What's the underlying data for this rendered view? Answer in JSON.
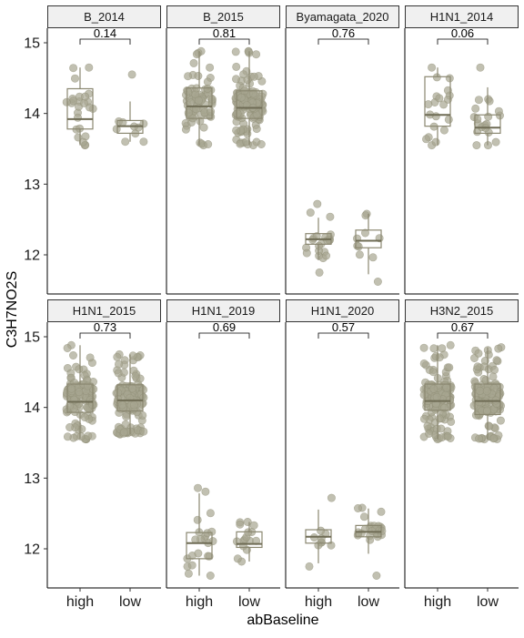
{
  "chart_data": {
    "type": "box-jitter",
    "xlabel": "abBaseline",
    "ylabel": "C3H7NO2S",
    "categories": [
      "high",
      "low"
    ],
    "yticks": [
      12,
      13,
      14,
      15
    ],
    "ylim": [
      11.5,
      15.3
    ],
    "colors": {
      "box": "#8a8770",
      "point": "#a7a590",
      "strip": "#f0f0f0"
    },
    "panels": [
      {
        "name": "B_2014",
        "pvalue": "0.14",
        "groups": [
          {
            "category": "high",
            "q1": 13.78,
            "median": 13.92,
            "q3": 14.35,
            "lo": 13.55,
            "hi": 14.65,
            "n": 25
          },
          {
            "category": "low",
            "q1": 13.72,
            "median": 13.82,
            "q3": 13.9,
            "lo": 13.6,
            "hi": 14.55,
            "n": 10
          }
        ]
      },
      {
        "name": "B_2015",
        "pvalue": "0.81",
        "groups": [
          {
            "category": "high",
            "q1": 13.93,
            "median": 14.1,
            "q3": 14.36,
            "lo": 13.55,
            "hi": 14.88,
            "n": 80
          },
          {
            "category": "low",
            "q1": 13.93,
            "median": 14.08,
            "q3": 14.32,
            "lo": 13.55,
            "hi": 14.88,
            "n": 150
          }
        ]
      },
      {
        "name": "Byamagata_2020",
        "pvalue": "0.76",
        "groups": [
          {
            "category": "high",
            "q1": 12.15,
            "median": 12.22,
            "q3": 12.3,
            "lo": 11.75,
            "hi": 12.72,
            "n": 22
          },
          {
            "category": "low",
            "q1": 12.1,
            "median": 12.2,
            "q3": 12.35,
            "lo": 11.62,
            "hi": 12.58,
            "n": 10
          }
        ]
      },
      {
        "name": "H1N1_2014",
        "pvalue": "0.06",
        "groups": [
          {
            "category": "high",
            "q1": 13.82,
            "median": 13.98,
            "q3": 14.52,
            "lo": 13.55,
            "hi": 14.65,
            "n": 20
          },
          {
            "category": "low",
            "q1": 13.72,
            "median": 13.8,
            "q3": 13.98,
            "lo": 13.55,
            "hi": 14.65,
            "n": 20
          }
        ]
      },
      {
        "name": "H1N1_2015",
        "pvalue": "0.73",
        "groups": [
          {
            "category": "high",
            "q1": 13.93,
            "median": 14.08,
            "q3": 14.33,
            "lo": 13.55,
            "hi": 14.88,
            "n": 130
          },
          {
            "category": "low",
            "q1": 13.95,
            "median": 14.1,
            "q3": 14.32,
            "lo": 13.62,
            "hi": 14.75,
            "n": 130
          }
        ]
      },
      {
        "name": "H1N1_2019",
        "pvalue": "0.69",
        "groups": [
          {
            "category": "high",
            "q1": 11.86,
            "median": 12.08,
            "q3": 12.23,
            "lo": 11.62,
            "hi": 12.86,
            "n": 22
          },
          {
            "category": "low",
            "q1": 12.02,
            "median": 12.07,
            "q3": 12.24,
            "lo": 11.82,
            "hi": 12.38,
            "n": 16
          }
        ]
      },
      {
        "name": "H1N1_2020",
        "pvalue": "0.57",
        "groups": [
          {
            "category": "high",
            "q1": 12.08,
            "median": 12.17,
            "q3": 12.27,
            "lo": 11.75,
            "hi": 12.72,
            "n": 10
          },
          {
            "category": "low",
            "q1": 12.17,
            "median": 12.24,
            "q3": 12.33,
            "lo": 11.62,
            "hi": 12.58,
            "n": 25
          }
        ]
      },
      {
        "name": "H3N2_2015",
        "pvalue": "0.67",
        "groups": [
          {
            "category": "high",
            "q1": 13.96,
            "median": 14.09,
            "q3": 14.33,
            "lo": 13.55,
            "hi": 14.88,
            "n": 140
          },
          {
            "category": "low",
            "q1": 13.9,
            "median": 14.09,
            "q3": 14.33,
            "lo": 13.55,
            "hi": 14.85,
            "n": 140
          }
        ]
      }
    ]
  }
}
